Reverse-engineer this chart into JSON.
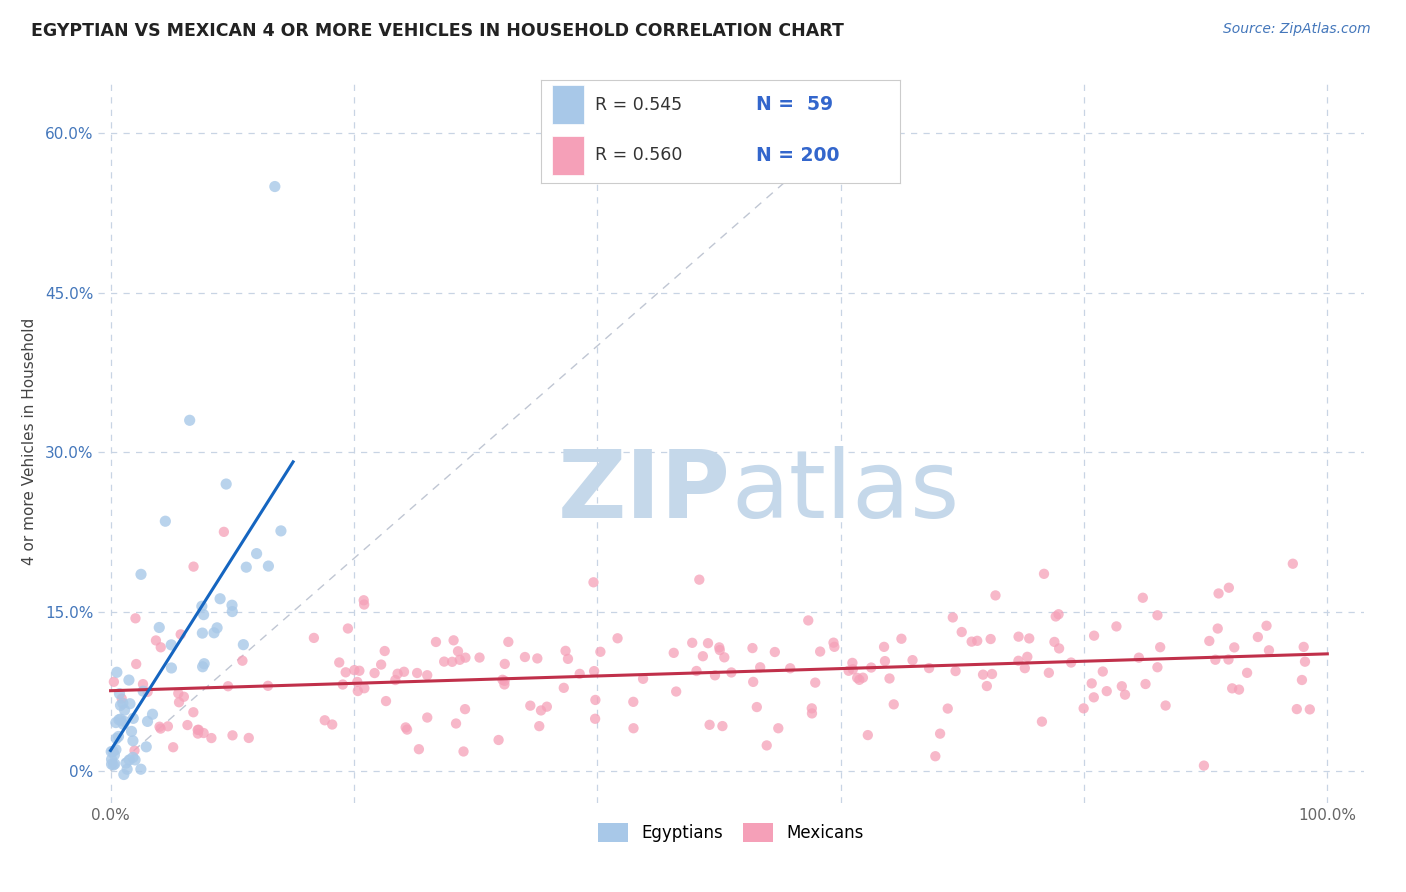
{
  "title": "EGYPTIAN VS MEXICAN 4 OR MORE VEHICLES IN HOUSEHOLD CORRELATION CHART",
  "source": "Source: ZipAtlas.com",
  "ylabel": "4 or more Vehicles in Household",
  "xlabel": "",
  "xlim": [
    -1.0,
    103.0
  ],
  "ylim": [
    -3.0,
    65.0
  ],
  "xticks": [
    0,
    20,
    40,
    60,
    80,
    100
  ],
  "yticks": [
    0,
    15,
    30,
    45,
    60
  ],
  "ytick_labels": [
    "0%",
    "15.0%",
    "30.0%",
    "45.0%",
    "60.0%"
  ],
  "egyptian_color": "#a8c8e8",
  "mexican_color": "#f5a0b8",
  "egyptian_line_color": "#1565c0",
  "mexican_line_color": "#c0304a",
  "diagonal_color": "#b0b8c8",
  "R_egyptian": 0.545,
  "N_egyptian": 59,
  "R_mexican": 0.56,
  "N_mexican": 200,
  "watermark_zip": "ZIP",
  "watermark_atlas": "atlas",
  "watermark_color": "#c5d8ea",
  "legend_egyptian": "Egyptians",
  "legend_mexican": "Mexicans",
  "background_color": "#ffffff",
  "grid_color": "#c8d4e4",
  "title_color": "#222222",
  "source_color": "#4477bb",
  "ylabel_color": "#444444",
  "tick_color": "#4477bb",
  "xtick_color": "#666666"
}
